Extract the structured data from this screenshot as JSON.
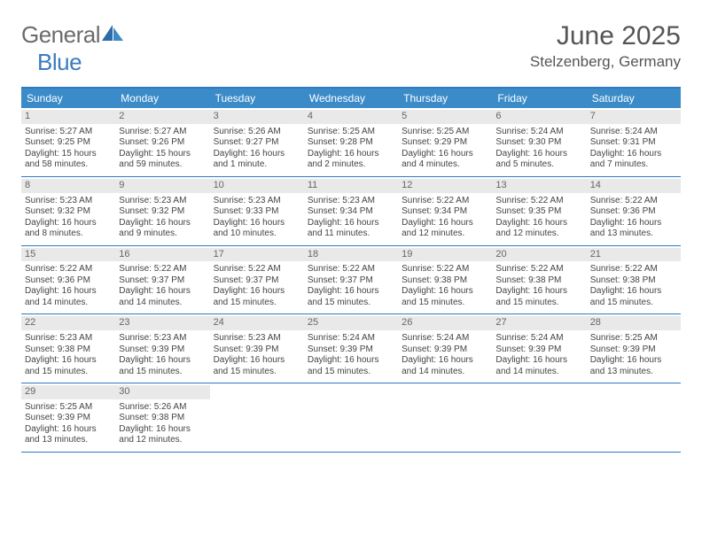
{
  "brand": {
    "part1": "General",
    "part2": "Blue"
  },
  "title": "June 2025",
  "location": "Stelzenberg, Germany",
  "colors": {
    "header_bg": "#3b8bc9",
    "border": "#2e7ac0",
    "daynum_bg": "#e9e9e9",
    "text": "#444444",
    "brand_gray": "#6b6b6b",
    "brand_blue": "#3b7bbf"
  },
  "weekdays": [
    "Sunday",
    "Monday",
    "Tuesday",
    "Wednesday",
    "Thursday",
    "Friday",
    "Saturday"
  ],
  "weeks": [
    [
      {
        "n": "1",
        "sr": "Sunrise: 5:27 AM",
        "ss": "Sunset: 9:25 PM",
        "d1": "Daylight: 15 hours",
        "d2": "and 58 minutes."
      },
      {
        "n": "2",
        "sr": "Sunrise: 5:27 AM",
        "ss": "Sunset: 9:26 PM",
        "d1": "Daylight: 15 hours",
        "d2": "and 59 minutes."
      },
      {
        "n": "3",
        "sr": "Sunrise: 5:26 AM",
        "ss": "Sunset: 9:27 PM",
        "d1": "Daylight: 16 hours",
        "d2": "and 1 minute."
      },
      {
        "n": "4",
        "sr": "Sunrise: 5:25 AM",
        "ss": "Sunset: 9:28 PM",
        "d1": "Daylight: 16 hours",
        "d2": "and 2 minutes."
      },
      {
        "n": "5",
        "sr": "Sunrise: 5:25 AM",
        "ss": "Sunset: 9:29 PM",
        "d1": "Daylight: 16 hours",
        "d2": "and 4 minutes."
      },
      {
        "n": "6",
        "sr": "Sunrise: 5:24 AM",
        "ss": "Sunset: 9:30 PM",
        "d1": "Daylight: 16 hours",
        "d2": "and 5 minutes."
      },
      {
        "n": "7",
        "sr": "Sunrise: 5:24 AM",
        "ss": "Sunset: 9:31 PM",
        "d1": "Daylight: 16 hours",
        "d2": "and 7 minutes."
      }
    ],
    [
      {
        "n": "8",
        "sr": "Sunrise: 5:23 AM",
        "ss": "Sunset: 9:32 PM",
        "d1": "Daylight: 16 hours",
        "d2": "and 8 minutes."
      },
      {
        "n": "9",
        "sr": "Sunrise: 5:23 AM",
        "ss": "Sunset: 9:32 PM",
        "d1": "Daylight: 16 hours",
        "d2": "and 9 minutes."
      },
      {
        "n": "10",
        "sr": "Sunrise: 5:23 AM",
        "ss": "Sunset: 9:33 PM",
        "d1": "Daylight: 16 hours",
        "d2": "and 10 minutes."
      },
      {
        "n": "11",
        "sr": "Sunrise: 5:23 AM",
        "ss": "Sunset: 9:34 PM",
        "d1": "Daylight: 16 hours",
        "d2": "and 11 minutes."
      },
      {
        "n": "12",
        "sr": "Sunrise: 5:22 AM",
        "ss": "Sunset: 9:34 PM",
        "d1": "Daylight: 16 hours",
        "d2": "and 12 minutes."
      },
      {
        "n": "13",
        "sr": "Sunrise: 5:22 AM",
        "ss": "Sunset: 9:35 PM",
        "d1": "Daylight: 16 hours",
        "d2": "and 12 minutes."
      },
      {
        "n": "14",
        "sr": "Sunrise: 5:22 AM",
        "ss": "Sunset: 9:36 PM",
        "d1": "Daylight: 16 hours",
        "d2": "and 13 minutes."
      }
    ],
    [
      {
        "n": "15",
        "sr": "Sunrise: 5:22 AM",
        "ss": "Sunset: 9:36 PM",
        "d1": "Daylight: 16 hours",
        "d2": "and 14 minutes."
      },
      {
        "n": "16",
        "sr": "Sunrise: 5:22 AM",
        "ss": "Sunset: 9:37 PM",
        "d1": "Daylight: 16 hours",
        "d2": "and 14 minutes."
      },
      {
        "n": "17",
        "sr": "Sunrise: 5:22 AM",
        "ss": "Sunset: 9:37 PM",
        "d1": "Daylight: 16 hours",
        "d2": "and 15 minutes."
      },
      {
        "n": "18",
        "sr": "Sunrise: 5:22 AM",
        "ss": "Sunset: 9:37 PM",
        "d1": "Daylight: 16 hours",
        "d2": "and 15 minutes."
      },
      {
        "n": "19",
        "sr": "Sunrise: 5:22 AM",
        "ss": "Sunset: 9:38 PM",
        "d1": "Daylight: 16 hours",
        "d2": "and 15 minutes."
      },
      {
        "n": "20",
        "sr": "Sunrise: 5:22 AM",
        "ss": "Sunset: 9:38 PM",
        "d1": "Daylight: 16 hours",
        "d2": "and 15 minutes."
      },
      {
        "n": "21",
        "sr": "Sunrise: 5:22 AM",
        "ss": "Sunset: 9:38 PM",
        "d1": "Daylight: 16 hours",
        "d2": "and 15 minutes."
      }
    ],
    [
      {
        "n": "22",
        "sr": "Sunrise: 5:23 AM",
        "ss": "Sunset: 9:38 PM",
        "d1": "Daylight: 16 hours",
        "d2": "and 15 minutes."
      },
      {
        "n": "23",
        "sr": "Sunrise: 5:23 AM",
        "ss": "Sunset: 9:39 PM",
        "d1": "Daylight: 16 hours",
        "d2": "and 15 minutes."
      },
      {
        "n": "24",
        "sr": "Sunrise: 5:23 AM",
        "ss": "Sunset: 9:39 PM",
        "d1": "Daylight: 16 hours",
        "d2": "and 15 minutes."
      },
      {
        "n": "25",
        "sr": "Sunrise: 5:24 AM",
        "ss": "Sunset: 9:39 PM",
        "d1": "Daylight: 16 hours",
        "d2": "and 15 minutes."
      },
      {
        "n": "26",
        "sr": "Sunrise: 5:24 AM",
        "ss": "Sunset: 9:39 PM",
        "d1": "Daylight: 16 hours",
        "d2": "and 14 minutes."
      },
      {
        "n": "27",
        "sr": "Sunrise: 5:24 AM",
        "ss": "Sunset: 9:39 PM",
        "d1": "Daylight: 16 hours",
        "d2": "and 14 minutes."
      },
      {
        "n": "28",
        "sr": "Sunrise: 5:25 AM",
        "ss": "Sunset: 9:39 PM",
        "d1": "Daylight: 16 hours",
        "d2": "and 13 minutes."
      }
    ],
    [
      {
        "n": "29",
        "sr": "Sunrise: 5:25 AM",
        "ss": "Sunset: 9:39 PM",
        "d1": "Daylight: 16 hours",
        "d2": "and 13 minutes."
      },
      {
        "n": "30",
        "sr": "Sunrise: 5:26 AM",
        "ss": "Sunset: 9:38 PM",
        "d1": "Daylight: 16 hours",
        "d2": "and 12 minutes."
      },
      null,
      null,
      null,
      null,
      null
    ]
  ]
}
